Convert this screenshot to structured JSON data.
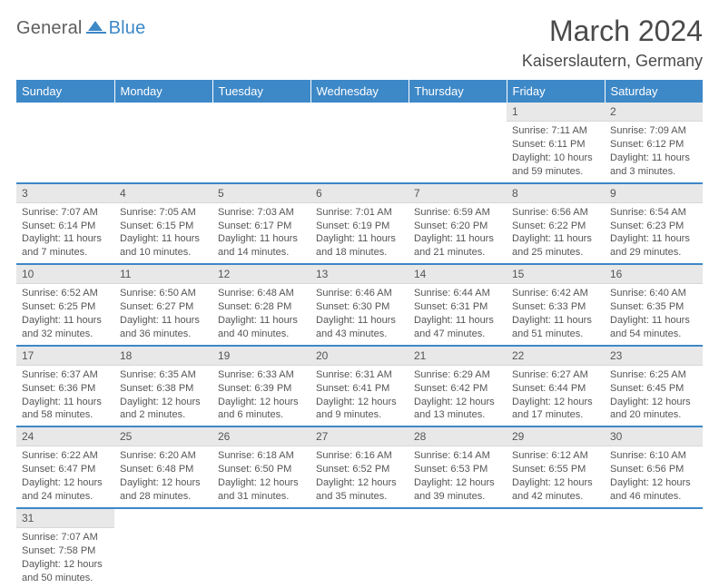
{
  "logo": {
    "word1": "General",
    "word2": "Blue"
  },
  "title": "March 2024",
  "subtitle": "Kaiserslautern, Germany",
  "colors": {
    "accent": "#3d88c7",
    "header_text": "#ffffff",
    "daynum_bg": "#e8e8e8",
    "body_text": "#555555",
    "background": "#ffffff"
  },
  "weekdays": [
    "Sunday",
    "Monday",
    "Tuesday",
    "Wednesday",
    "Thursday",
    "Friday",
    "Saturday"
  ],
  "weeks": [
    [
      null,
      null,
      null,
      null,
      null,
      {
        "n": "1",
        "sunrise": "Sunrise: 7:11 AM",
        "sunset": "Sunset: 6:11 PM",
        "daylight": "Daylight: 10 hours and 59 minutes."
      },
      {
        "n": "2",
        "sunrise": "Sunrise: 7:09 AM",
        "sunset": "Sunset: 6:12 PM",
        "daylight": "Daylight: 11 hours and 3 minutes."
      }
    ],
    [
      {
        "n": "3",
        "sunrise": "Sunrise: 7:07 AM",
        "sunset": "Sunset: 6:14 PM",
        "daylight": "Daylight: 11 hours and 7 minutes."
      },
      {
        "n": "4",
        "sunrise": "Sunrise: 7:05 AM",
        "sunset": "Sunset: 6:15 PM",
        "daylight": "Daylight: 11 hours and 10 minutes."
      },
      {
        "n": "5",
        "sunrise": "Sunrise: 7:03 AM",
        "sunset": "Sunset: 6:17 PM",
        "daylight": "Daylight: 11 hours and 14 minutes."
      },
      {
        "n": "6",
        "sunrise": "Sunrise: 7:01 AM",
        "sunset": "Sunset: 6:19 PM",
        "daylight": "Daylight: 11 hours and 18 minutes."
      },
      {
        "n": "7",
        "sunrise": "Sunrise: 6:59 AM",
        "sunset": "Sunset: 6:20 PM",
        "daylight": "Daylight: 11 hours and 21 minutes."
      },
      {
        "n": "8",
        "sunrise": "Sunrise: 6:56 AM",
        "sunset": "Sunset: 6:22 PM",
        "daylight": "Daylight: 11 hours and 25 minutes."
      },
      {
        "n": "9",
        "sunrise": "Sunrise: 6:54 AM",
        "sunset": "Sunset: 6:23 PM",
        "daylight": "Daylight: 11 hours and 29 minutes."
      }
    ],
    [
      {
        "n": "10",
        "sunrise": "Sunrise: 6:52 AM",
        "sunset": "Sunset: 6:25 PM",
        "daylight": "Daylight: 11 hours and 32 minutes."
      },
      {
        "n": "11",
        "sunrise": "Sunrise: 6:50 AM",
        "sunset": "Sunset: 6:27 PM",
        "daylight": "Daylight: 11 hours and 36 minutes."
      },
      {
        "n": "12",
        "sunrise": "Sunrise: 6:48 AM",
        "sunset": "Sunset: 6:28 PM",
        "daylight": "Daylight: 11 hours and 40 minutes."
      },
      {
        "n": "13",
        "sunrise": "Sunrise: 6:46 AM",
        "sunset": "Sunset: 6:30 PM",
        "daylight": "Daylight: 11 hours and 43 minutes."
      },
      {
        "n": "14",
        "sunrise": "Sunrise: 6:44 AM",
        "sunset": "Sunset: 6:31 PM",
        "daylight": "Daylight: 11 hours and 47 minutes."
      },
      {
        "n": "15",
        "sunrise": "Sunrise: 6:42 AM",
        "sunset": "Sunset: 6:33 PM",
        "daylight": "Daylight: 11 hours and 51 minutes."
      },
      {
        "n": "16",
        "sunrise": "Sunrise: 6:40 AM",
        "sunset": "Sunset: 6:35 PM",
        "daylight": "Daylight: 11 hours and 54 minutes."
      }
    ],
    [
      {
        "n": "17",
        "sunrise": "Sunrise: 6:37 AM",
        "sunset": "Sunset: 6:36 PM",
        "daylight": "Daylight: 11 hours and 58 minutes."
      },
      {
        "n": "18",
        "sunrise": "Sunrise: 6:35 AM",
        "sunset": "Sunset: 6:38 PM",
        "daylight": "Daylight: 12 hours and 2 minutes."
      },
      {
        "n": "19",
        "sunrise": "Sunrise: 6:33 AM",
        "sunset": "Sunset: 6:39 PM",
        "daylight": "Daylight: 12 hours and 6 minutes."
      },
      {
        "n": "20",
        "sunrise": "Sunrise: 6:31 AM",
        "sunset": "Sunset: 6:41 PM",
        "daylight": "Daylight: 12 hours and 9 minutes."
      },
      {
        "n": "21",
        "sunrise": "Sunrise: 6:29 AM",
        "sunset": "Sunset: 6:42 PM",
        "daylight": "Daylight: 12 hours and 13 minutes."
      },
      {
        "n": "22",
        "sunrise": "Sunrise: 6:27 AM",
        "sunset": "Sunset: 6:44 PM",
        "daylight": "Daylight: 12 hours and 17 minutes."
      },
      {
        "n": "23",
        "sunrise": "Sunrise: 6:25 AM",
        "sunset": "Sunset: 6:45 PM",
        "daylight": "Daylight: 12 hours and 20 minutes."
      }
    ],
    [
      {
        "n": "24",
        "sunrise": "Sunrise: 6:22 AM",
        "sunset": "Sunset: 6:47 PM",
        "daylight": "Daylight: 12 hours and 24 minutes."
      },
      {
        "n": "25",
        "sunrise": "Sunrise: 6:20 AM",
        "sunset": "Sunset: 6:48 PM",
        "daylight": "Daylight: 12 hours and 28 minutes."
      },
      {
        "n": "26",
        "sunrise": "Sunrise: 6:18 AM",
        "sunset": "Sunset: 6:50 PM",
        "daylight": "Daylight: 12 hours and 31 minutes."
      },
      {
        "n": "27",
        "sunrise": "Sunrise: 6:16 AM",
        "sunset": "Sunset: 6:52 PM",
        "daylight": "Daylight: 12 hours and 35 minutes."
      },
      {
        "n": "28",
        "sunrise": "Sunrise: 6:14 AM",
        "sunset": "Sunset: 6:53 PM",
        "daylight": "Daylight: 12 hours and 39 minutes."
      },
      {
        "n": "29",
        "sunrise": "Sunrise: 6:12 AM",
        "sunset": "Sunset: 6:55 PM",
        "daylight": "Daylight: 12 hours and 42 minutes."
      },
      {
        "n": "30",
        "sunrise": "Sunrise: 6:10 AM",
        "sunset": "Sunset: 6:56 PM",
        "daylight": "Daylight: 12 hours and 46 minutes."
      }
    ],
    [
      {
        "n": "31",
        "sunrise": "Sunrise: 7:07 AM",
        "sunset": "Sunset: 7:58 PM",
        "daylight": "Daylight: 12 hours and 50 minutes."
      },
      null,
      null,
      null,
      null,
      null,
      null
    ]
  ]
}
